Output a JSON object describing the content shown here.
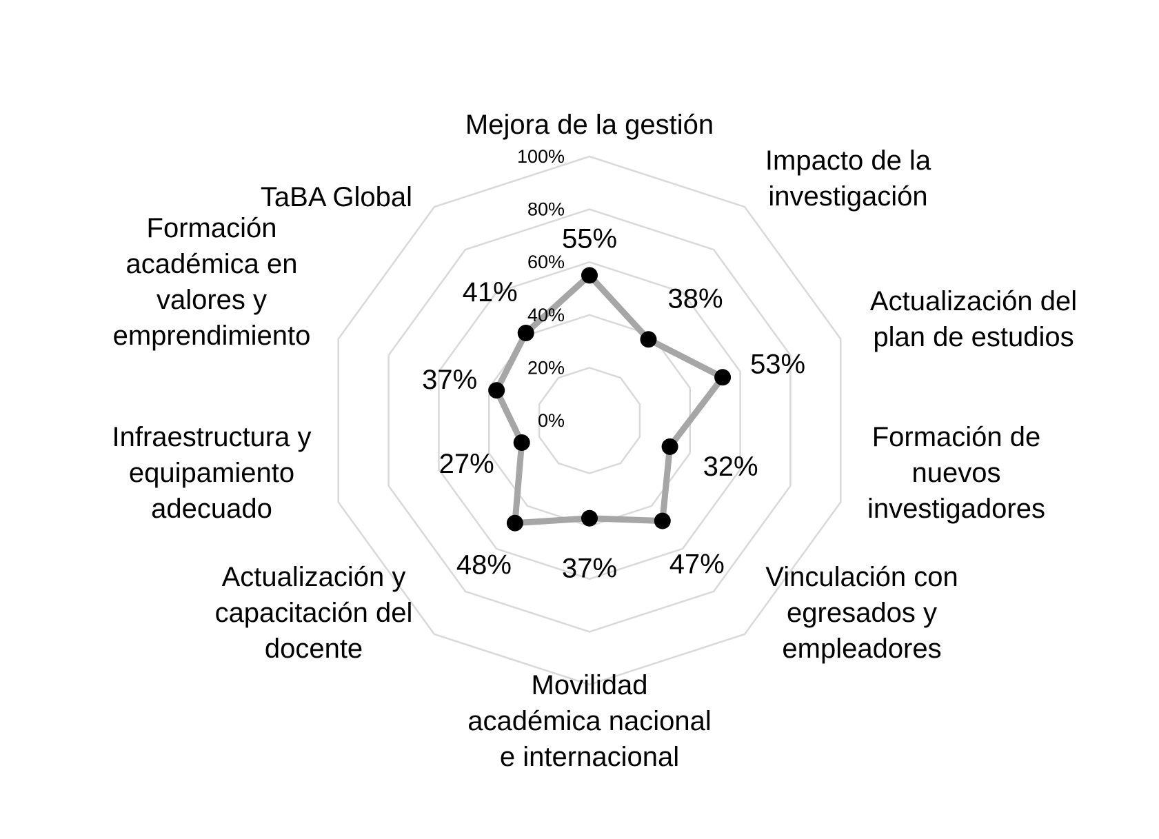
{
  "chart_data": {
    "type": "radar",
    "title": "",
    "categories": [
      [
        "Mejora de la gestión"
      ],
      [
        "Impacto de la",
        "investigación"
      ],
      [
        "Actualización del",
        "plan de estudios"
      ],
      [
        "Formación de",
        "nuevos",
        "investigadores"
      ],
      [
        "Vinculación con",
        "egresados y",
        "empleadores"
      ],
      [
        "Movilidad",
        "académica nacional",
        "e internacional"
      ],
      [
        "Actualización y",
        "capacitación del",
        "docente"
      ],
      [
        "Infraestructura y",
        "equipamiento",
        "adecuado"
      ],
      [
        "Formación",
        "académica en",
        "valores y",
        "emprendimiento"
      ],
      [
        "TaBA Global"
      ]
    ],
    "series": [
      {
        "values": [
          55,
          38,
          53,
          32,
          47,
          37,
          48,
          27,
          37,
          41
        ],
        "labels": [
          "55%",
          "38%",
          "53%",
          "32%",
          "47%",
          "37%",
          "48%",
          "27%",
          "37%",
          "41%"
        ],
        "line_color": "#a6a6a6",
        "marker_color": "#000000"
      }
    ],
    "axis": {
      "min": 0,
      "max": 100,
      "ticks": [
        0,
        20,
        40,
        60,
        80,
        100
      ],
      "tick_labels": [
        "0%",
        "20%",
        "40%",
        "60%",
        "80%",
        "100%"
      ]
    },
    "grid": true,
    "grid_color": "#d9d9d9",
    "legend": "none"
  }
}
